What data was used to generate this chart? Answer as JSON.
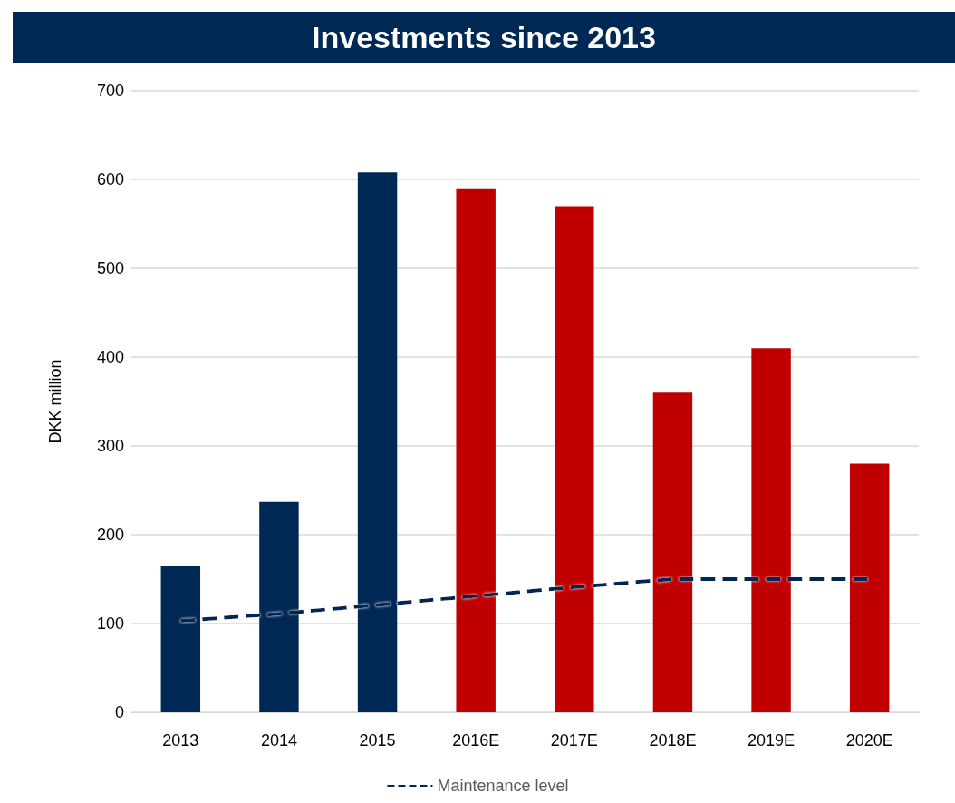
{
  "chart_data": {
    "type": "bar",
    "title": "Investments since 2013",
    "ylabel": "DKK million",
    "categories": [
      "2013",
      "2014",
      "2015",
      "2016E",
      "2017E",
      "2018E",
      "2019E",
      "2020E"
    ],
    "series": [
      {
        "colors": [
          "#002855",
          "#002855",
          "#002855",
          "#c00000",
          "#c00000",
          "#c00000",
          "#c00000",
          "#c00000"
        ],
        "values": [
          165,
          237,
          608,
          590,
          570,
          360,
          410,
          280
        ]
      },
      {
        "type": "line",
        "name": "Maintenance level",
        "color": "#002855",
        "line_style": "dashed",
        "marker": "none",
        "values": [
          103,
          111,
          121,
          131,
          141,
          150,
          150,
          150
        ]
      }
    ],
    "ylim": [
      0,
      700
    ],
    "yticks": [
      0,
      100,
      200,
      300,
      400,
      500,
      600,
      700
    ],
    "grid": "y",
    "legend": "bottom"
  }
}
